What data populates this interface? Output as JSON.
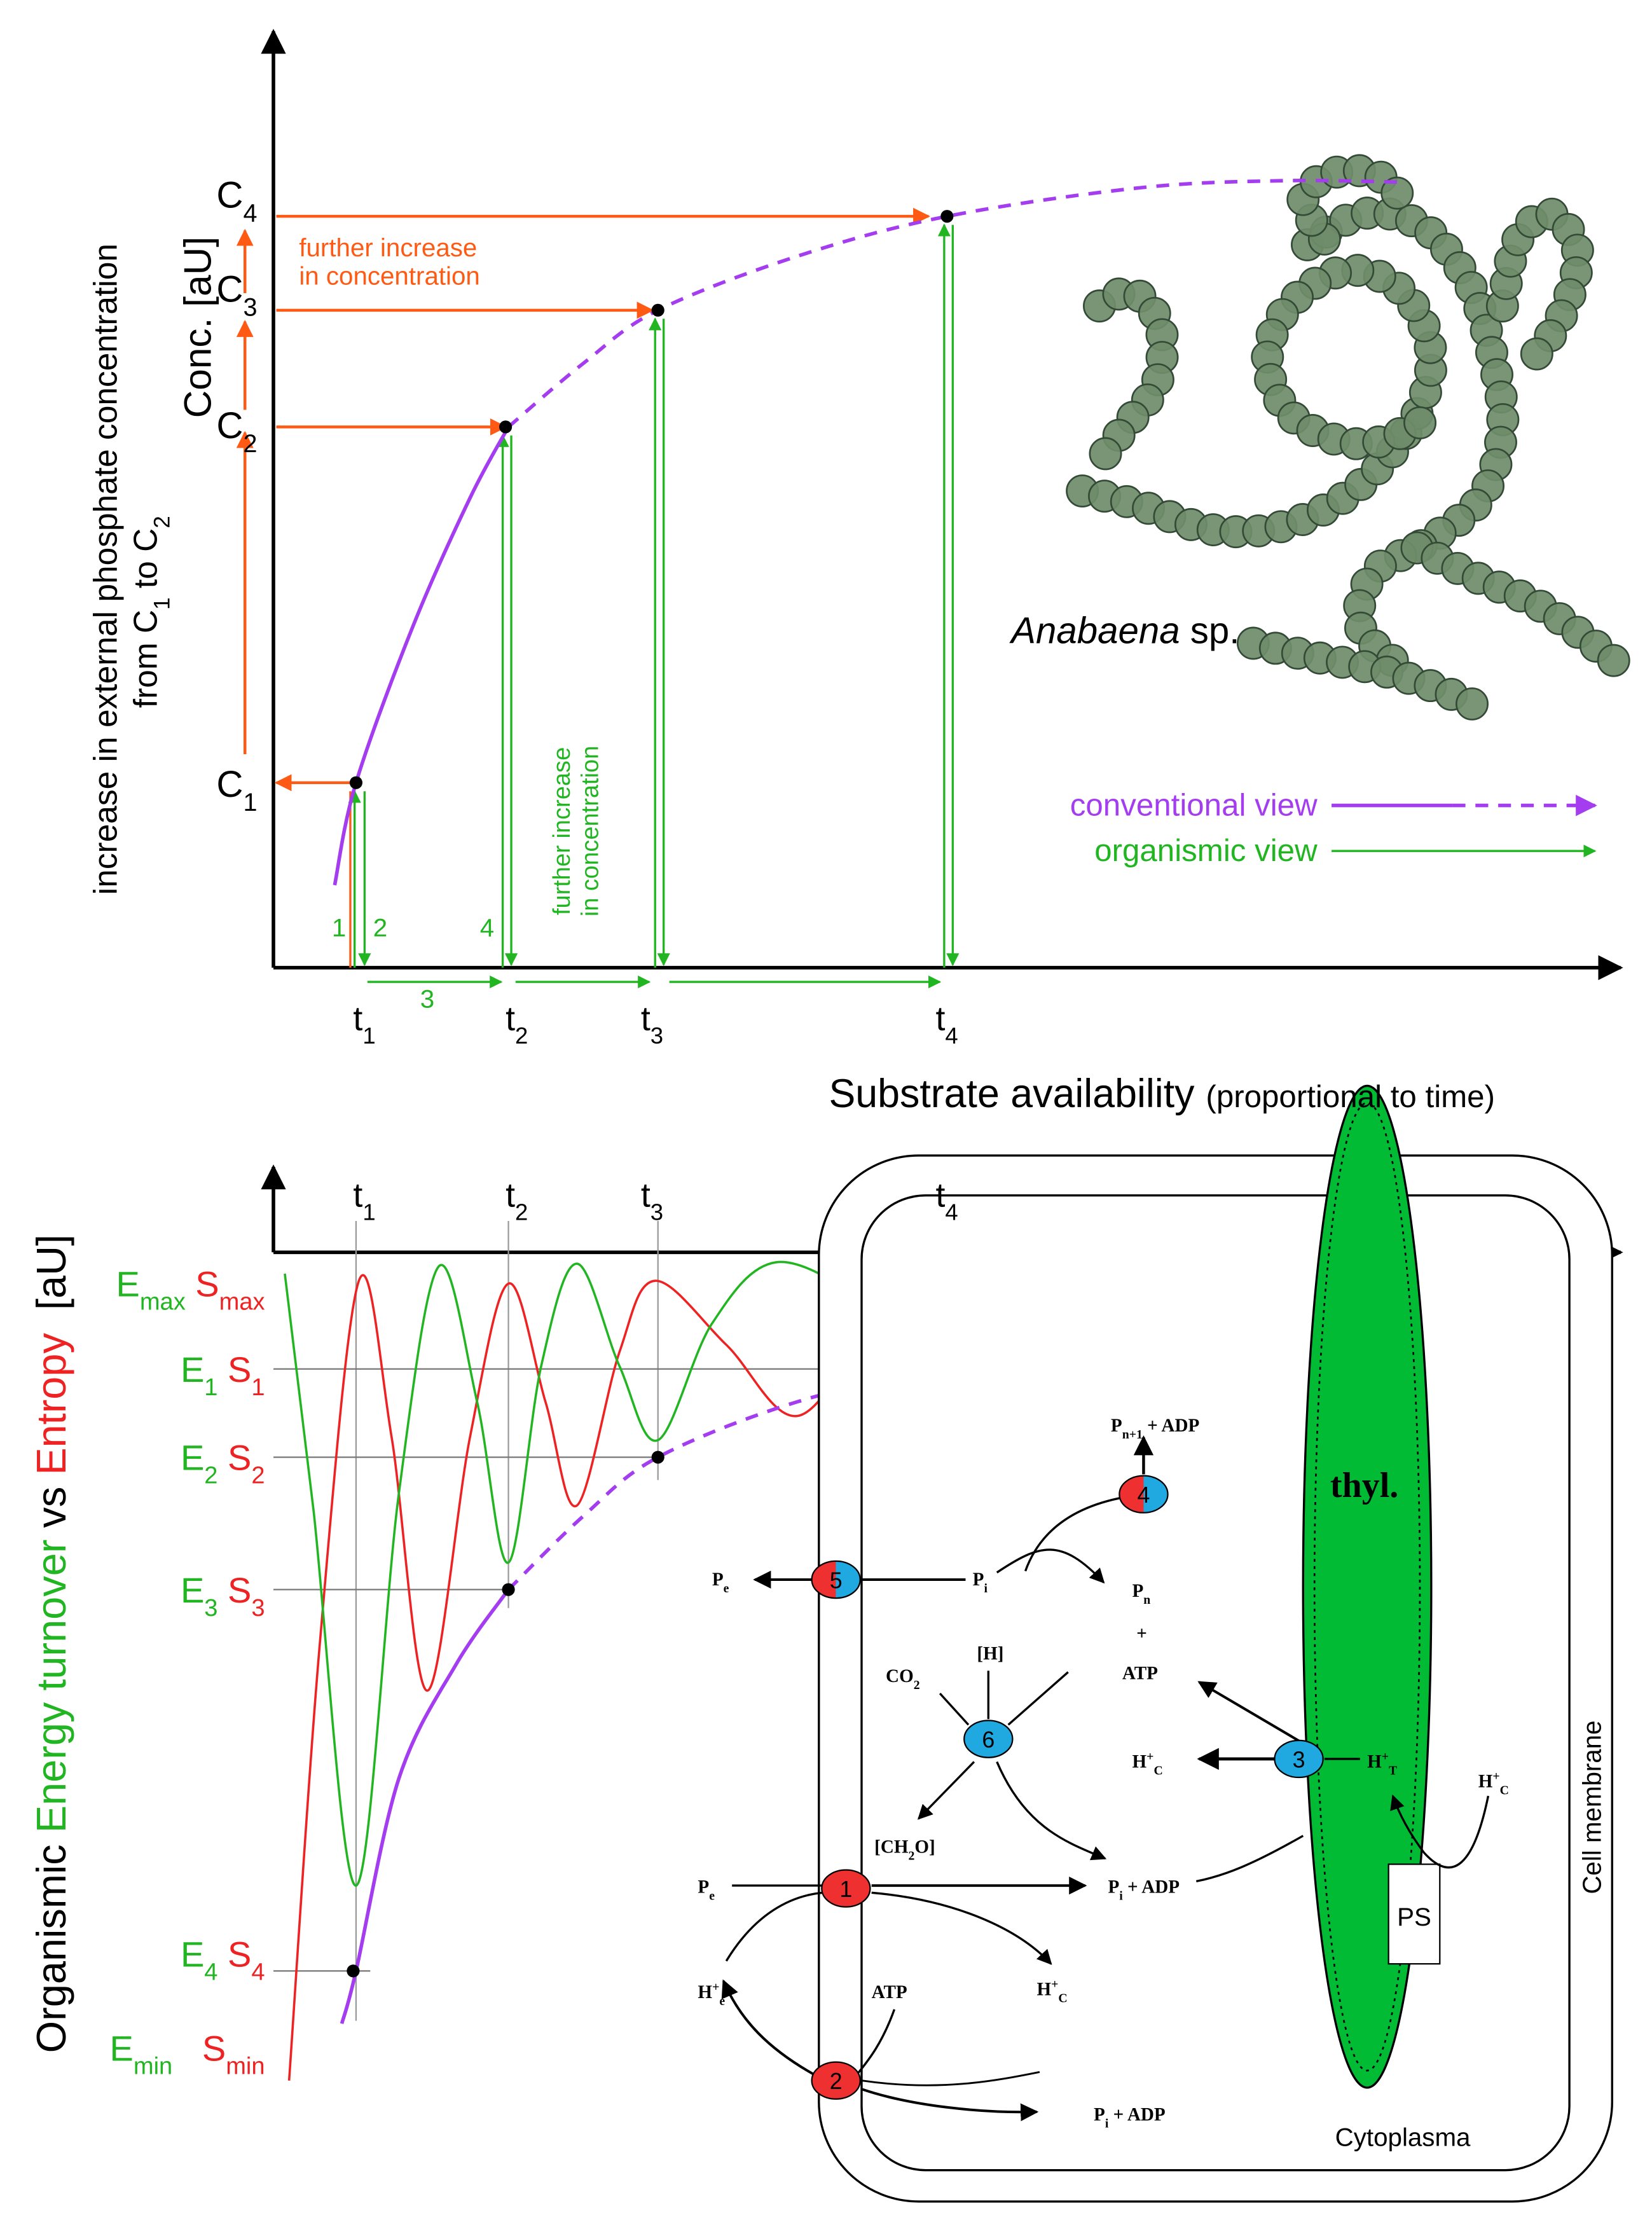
{
  "top_chart": {
    "y_axis_label": [
      "increase in external phosphate concentration",
      [
        {
          "text": "from C"
        },
        {
          "text": "1",
          "sub": true
        },
        {
          "text": " to C"
        },
        {
          "text": "2",
          "sub": true
        }
      ]
    ],
    "y_axis_unit": "Conc. [aU]",
    "c_levels": [
      [
        {
          "text": "C"
        },
        {
          "text": "1",
          "sub": true
        }
      ],
      [
        {
          "text": "C"
        },
        {
          "text": "2",
          "sub": true
        }
      ],
      [
        {
          "text": "C"
        },
        {
          "text": "3",
          "sub": true
        }
      ],
      [
        {
          "text": "C"
        },
        {
          "text": "4",
          "sub": true
        }
      ]
    ],
    "orange_note": [
      "further increase",
      "in concentration"
    ],
    "green_note": [
      "further increase",
      "in concentration"
    ],
    "steps": [
      "1",
      "2",
      "3",
      "4"
    ],
    "t_ticks": [
      [
        {
          "text": "t"
        },
        {
          "text": "1",
          "sub": true
        }
      ],
      [
        {
          "text": "t"
        },
        {
          "text": "2",
          "sub": true
        }
      ],
      [
        {
          "text": "t"
        },
        {
          "text": "3",
          "sub": true
        }
      ],
      [
        {
          "text": "t"
        },
        {
          "text": "4",
          "sub": true
        }
      ]
    ],
    "x_axis_label": "Substrate availability",
    "x_axis_note": "(proportional to time)",
    "species": [
      {
        "text": "Anabaena",
        "italic": true
      },
      {
        "text": " sp."
      }
    ],
    "legend": [
      {
        "name": "conventional view",
        "color": "#a43cf0"
      },
      {
        "name": "organismic view",
        "color": "#22b522"
      }
    ]
  },
  "bottom_chart": {
    "y_axis_label": [
      {
        "text": "Organismic "
      },
      {
        "text": "Energy turnover",
        "color": "#22b522"
      },
      {
        "text": " vs "
      },
      {
        "text": "Entropy",
        "color": "#ee2222"
      },
      {
        "text": "  [aU]"
      }
    ],
    "t_ticks": [
      [
        {
          "text": "t"
        },
        {
          "text": "1",
          "sub": true
        }
      ],
      [
        {
          "text": "t"
        },
        {
          "text": "2",
          "sub": true
        }
      ],
      [
        {
          "text": "t"
        },
        {
          "text": "3",
          "sub": true
        }
      ],
      [
        {
          "text": "t"
        },
        {
          "text": "4",
          "sub": true
        }
      ]
    ],
    "levels": [
      [
        {
          "text": "E",
          "color": "#22b522"
        },
        {
          "text": "max",
          "sub": true,
          "color": "#22b522"
        },
        {
          "text": " S",
          "color": "#ee2222"
        },
        {
          "text": "max",
          "sub": true,
          "color": "#ee2222"
        }
      ],
      [
        {
          "text": "E",
          "color": "#22b522"
        },
        {
          "text": "1",
          "sub": true,
          "color": "#22b522"
        },
        {
          "text": " S",
          "color": "#ee2222"
        },
        {
          "text": "1",
          "sub": true,
          "color": "#ee2222"
        }
      ],
      [
        {
          "text": "E",
          "color": "#22b522"
        },
        {
          "text": "2",
          "sub": true,
          "color": "#22b522"
        },
        {
          "text": " S",
          "color": "#ee2222"
        },
        {
          "text": "2",
          "sub": true,
          "color": "#ee2222"
        }
      ],
      [
        {
          "text": "E",
          "color": "#22b522"
        },
        {
          "text": "3",
          "sub": true,
          "color": "#22b522"
        },
        {
          "text": " S",
          "color": "#ee2222"
        },
        {
          "text": "3",
          "sub": true,
          "color": "#ee2222"
        }
      ],
      [
        {
          "text": "E",
          "color": "#22b522"
        },
        {
          "text": "4",
          "sub": true,
          "color": "#22b522"
        },
        {
          "text": " S",
          "color": "#ee2222"
        },
        {
          "text": "4",
          "sub": true,
          "color": "#ee2222"
        }
      ],
      [
        {
          "text": "E",
          "color": "#22b522"
        },
        {
          "text": "min",
          "sub": true,
          "color": "#22b522"
        },
        {
          "text": "   S",
          "color": "#ee2222"
        },
        {
          "text": "min",
          "sub": true,
          "color": "#ee2222"
        }
      ]
    ]
  },
  "cell": {
    "nodes": [
      "1",
      "2",
      "3",
      "4",
      "5",
      "6"
    ],
    "labels": {
      "pe_out": [
        {
          "text": "P"
        },
        {
          "text": "e",
          "sub": true
        }
      ],
      "pi_top": [
        {
          "text": "P"
        },
        {
          "text": "i",
          "sub": true
        }
      ],
      "pn1_adp": [
        {
          "text": "P"
        },
        {
          "text": "n+1",
          "sub": true
        },
        {
          "text": " + ADP"
        }
      ],
      "pn": [
        {
          "text": "P"
        },
        {
          "text": "n",
          "sub": true
        }
      ],
      "plus": "+",
      "atp_top": "ATP",
      "co2": [
        {
          "text": "CO"
        },
        {
          "text": "2",
          "sub": true
        }
      ],
      "h": "[H]",
      "ch2o": [
        {
          "text": "[CH"
        },
        {
          "text": "2",
          "sub": true
        },
        {
          "text": "O]"
        }
      ],
      "hc_mid": [
        {
          "text": "H"
        },
        {
          "text": "+",
          "sup": true
        },
        {
          "text": "C",
          "sub": true
        }
      ],
      "ht": [
        {
          "text": "H"
        },
        {
          "text": "+",
          "sup": true
        },
        {
          "text": "T",
          "sub": true
        }
      ],
      "hc_right": [
        {
          "text": "H"
        },
        {
          "text": "+",
          "sup": true
        },
        {
          "text": "C",
          "sub": true
        }
      ],
      "pe_in": [
        {
          "text": "P"
        },
        {
          "text": "e",
          "sub": true
        }
      ],
      "pi_adp_mid": [
        {
          "text": "P"
        },
        {
          "text": "i",
          "sub": true
        },
        {
          "text": " + ADP"
        }
      ],
      "he": [
        {
          "text": "H"
        },
        {
          "text": "+",
          "sup": true
        },
        {
          "text": "e",
          "sub": true
        }
      ],
      "atp_low": "ATP",
      "hc_low": [
        {
          "text": "H"
        },
        {
          "text": "+",
          "sup": true
        },
        {
          "text": "C",
          "sub": true
        }
      ],
      "pi_adp_low": [
        {
          "text": "P"
        },
        {
          "text": "i",
          "sub": true
        },
        {
          "text": " + ADP"
        }
      ]
    },
    "thylakoid": "thyl.",
    "photosystem": "PS",
    "cytoplasm": "Cytoplasma",
    "membrane": "Cell membrane"
  }
}
